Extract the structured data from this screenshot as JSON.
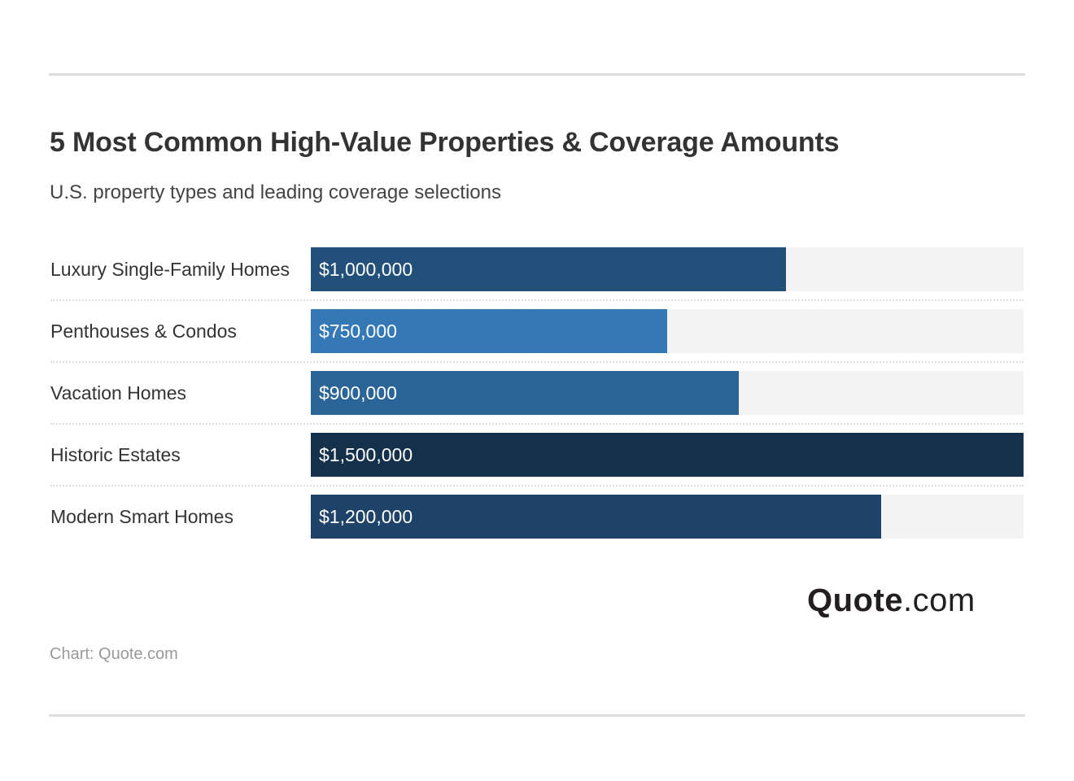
{
  "title": "5 Most Common High-Value Properties & Coverage Amounts",
  "subtitle": "U.S. property types and leading coverage selections",
  "source": "Chart: Quote.com",
  "logo": {
    "bold": "Quote",
    "light": ".com"
  },
  "chart_data": {
    "type": "bar",
    "orientation": "horizontal",
    "title": "5 Most Common High-Value Properties & Coverage Amounts",
    "xlabel": "",
    "ylabel": "",
    "xlim": [
      0,
      1500000
    ],
    "categories": [
      "Luxury Single-Family Homes",
      "Penthouses & Condos",
      "Vacation Homes",
      "Historic Estates",
      "Modern Smart Homes"
    ],
    "values": [
      1000000,
      750000,
      900000,
      1500000,
      1200000
    ],
    "value_labels": [
      "$1,000,000",
      "$750,000",
      "$900,000",
      "$1,500,000",
      "$1,200,000"
    ],
    "colors": [
      "#22507a",
      "#3479b6",
      "#2b6598",
      "#15304b",
      "#1f4368"
    ]
  }
}
